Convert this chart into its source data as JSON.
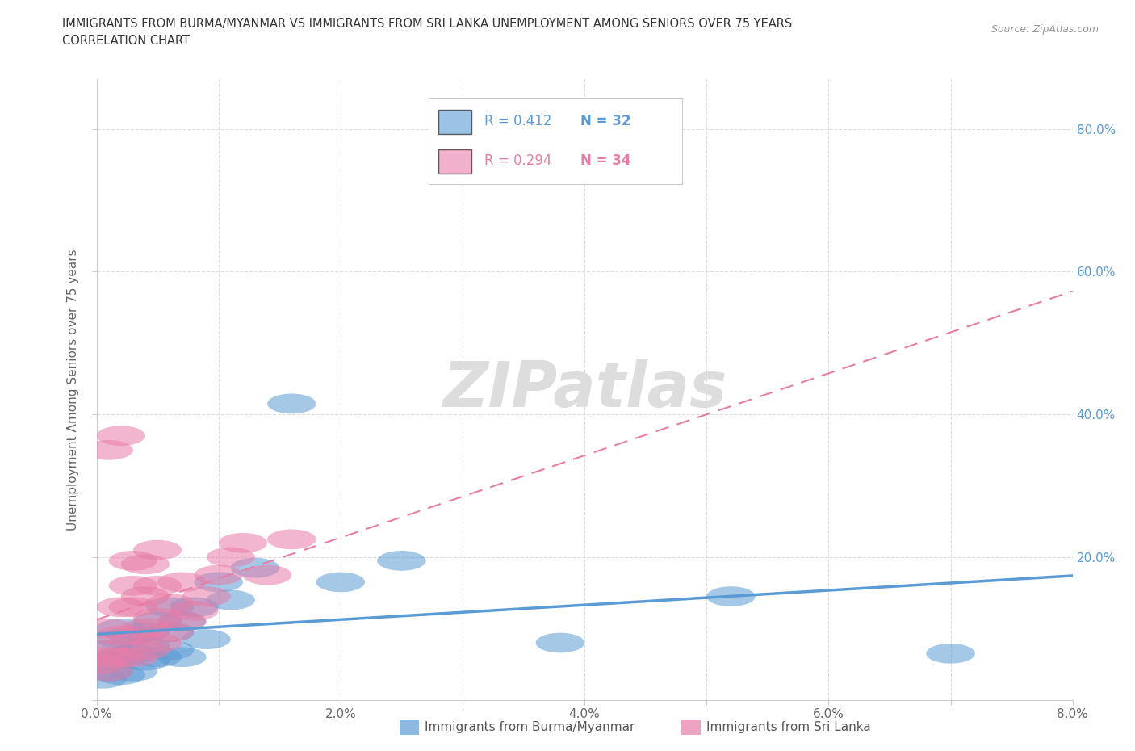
{
  "title_line1": "IMMIGRANTS FROM BURMA/MYANMAR VS IMMIGRANTS FROM SRI LANKA UNEMPLOYMENT AMONG SENIORS OVER 75 YEARS",
  "title_line2": "CORRELATION CHART",
  "source": "Source: ZipAtlas.com",
  "ylabel": "Unemployment Among Seniors over 75 years",
  "xlim": [
    0.0,
    0.08
  ],
  "ylim": [
    0.0,
    0.87
  ],
  "xticks": [
    0.0,
    0.01,
    0.02,
    0.03,
    0.04,
    0.05,
    0.06,
    0.07,
    0.08
  ],
  "yticks": [
    0.0,
    0.2,
    0.4,
    0.6,
    0.8
  ],
  "xticklabels": [
    "0.0%",
    "",
    "2.0%",
    "",
    "4.0%",
    "",
    "6.0%",
    "",
    "8.0%"
  ],
  "yticklabels_left": [
    "",
    "",
    "",
    "",
    ""
  ],
  "yticklabels_right": [
    "",
    "20.0%",
    "40.0%",
    "60.0%",
    "80.0%"
  ],
  "burma_color": "#5b9bd5",
  "srilanka_color": "#e87da8",
  "burma_R": 0.412,
  "burma_N": 32,
  "srilanka_R": 0.294,
  "srilanka_N": 34,
  "burma_x": [
    0.0005,
    0.001,
    0.001,
    0.001,
    0.002,
    0.002,
    0.002,
    0.002,
    0.003,
    0.003,
    0.003,
    0.004,
    0.004,
    0.004,
    0.005,
    0.005,
    0.006,
    0.006,
    0.006,
    0.007,
    0.007,
    0.008,
    0.009,
    0.01,
    0.011,
    0.013,
    0.016,
    0.02,
    0.025,
    0.038,
    0.052,
    0.07
  ],
  "burma_y": [
    0.03,
    0.04,
    0.055,
    0.07,
    0.035,
    0.06,
    0.085,
    0.1,
    0.04,
    0.065,
    0.09,
    0.055,
    0.075,
    0.095,
    0.06,
    0.11,
    0.07,
    0.095,
    0.13,
    0.06,
    0.11,
    0.13,
    0.085,
    0.165,
    0.14,
    0.185,
    0.415,
    0.165,
    0.195,
    0.08,
    0.145,
    0.065
  ],
  "srilanka_x": [
    0.0003,
    0.0005,
    0.001,
    0.001,
    0.001,
    0.001,
    0.002,
    0.002,
    0.002,
    0.002,
    0.003,
    0.003,
    0.003,
    0.003,
    0.003,
    0.004,
    0.004,
    0.004,
    0.004,
    0.005,
    0.005,
    0.005,
    0.005,
    0.006,
    0.006,
    0.007,
    0.007,
    0.008,
    0.009,
    0.01,
    0.011,
    0.012,
    0.014,
    0.016
  ],
  "srilanka_y": [
    0.05,
    0.07,
    0.04,
    0.06,
    0.1,
    0.35,
    0.06,
    0.09,
    0.13,
    0.37,
    0.06,
    0.09,
    0.13,
    0.16,
    0.195,
    0.07,
    0.1,
    0.145,
    0.19,
    0.08,
    0.115,
    0.16,
    0.21,
    0.095,
    0.135,
    0.11,
    0.165,
    0.125,
    0.145,
    0.175,
    0.2,
    0.22,
    0.175,
    0.225
  ],
  "burma_trend_x": [
    0.0,
    0.08
  ],
  "srilanka_trend_x": [
    0.0,
    0.08
  ],
  "watermark": "ZIPatlas",
  "watermark_color": "#dddddd",
  "background_color": "#ffffff",
  "grid_color": "#dddddd",
  "right_axis_color": "#5b9bd5"
}
